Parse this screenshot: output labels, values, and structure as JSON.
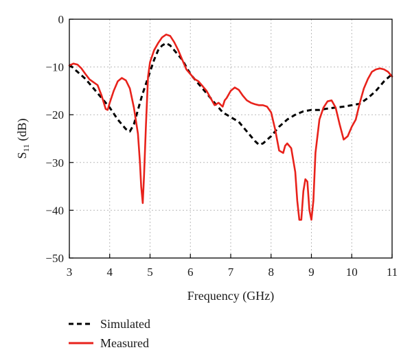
{
  "chart_data": {
    "type": "line",
    "xlabel": "Frequency (GHz)",
    "ylabel": {
      "main": "S",
      "sub": "11",
      "unit": " (dB)"
    },
    "xlim": [
      3,
      11
    ],
    "ylim": [
      -50,
      0
    ],
    "xticks": [
      3,
      4,
      5,
      6,
      7,
      8,
      9,
      10,
      11
    ],
    "yticks": [
      0,
      -10,
      -20,
      -30,
      -40,
      -50
    ],
    "ytick_labels": [
      "0",
      "−10",
      "−20",
      "−30",
      "−40",
      "−50"
    ],
    "grid": true,
    "legend_position": "bottom-left, below plot",
    "series": [
      {
        "name": "Simulated",
        "color": "#000000",
        "style": "dashed",
        "points": [
          [
            3.0,
            -9.5
          ],
          [
            3.2,
            -11.0
          ],
          [
            3.4,
            -12.5
          ],
          [
            3.6,
            -14.5
          ],
          [
            3.8,
            -16.5
          ],
          [
            4.0,
            -18.5
          ],
          [
            4.2,
            -21.0
          ],
          [
            4.4,
            -23.0
          ],
          [
            4.5,
            -23.5
          ],
          [
            4.6,
            -22.0
          ],
          [
            4.7,
            -19.0
          ],
          [
            4.8,
            -16.0
          ],
          [
            4.9,
            -13.5
          ],
          [
            5.0,
            -11.0
          ],
          [
            5.1,
            -8.5
          ],
          [
            5.2,
            -6.5
          ],
          [
            5.3,
            -5.5
          ],
          [
            5.4,
            -5.0
          ],
          [
            5.5,
            -5.5
          ],
          [
            5.6,
            -6.5
          ],
          [
            5.8,
            -8.5
          ],
          [
            6.0,
            -11.5
          ],
          [
            6.2,
            -13.5
          ],
          [
            6.4,
            -15.5
          ],
          [
            6.6,
            -17.5
          ],
          [
            6.8,
            -19.5
          ],
          [
            7.0,
            -20.5
          ],
          [
            7.2,
            -21.5
          ],
          [
            7.4,
            -23.5
          ],
          [
            7.6,
            -25.5
          ],
          [
            7.7,
            -26.3
          ],
          [
            7.8,
            -26.0
          ],
          [
            8.0,
            -24.5
          ],
          [
            8.2,
            -22.5
          ],
          [
            8.4,
            -21.0
          ],
          [
            8.6,
            -20.0
          ],
          [
            8.8,
            -19.3
          ],
          [
            9.0,
            -19.0
          ],
          [
            9.2,
            -19.0
          ],
          [
            9.4,
            -18.7
          ],
          [
            9.6,
            -18.5
          ],
          [
            9.8,
            -18.3
          ],
          [
            10.0,
            -18.0
          ],
          [
            10.2,
            -17.7
          ],
          [
            10.4,
            -16.5
          ],
          [
            10.6,
            -15.0
          ],
          [
            10.8,
            -13.0
          ],
          [
            11.0,
            -11.5
          ]
        ]
      },
      {
        "name": "Measured",
        "color": "#e8221b",
        "style": "solid",
        "points": [
          [
            3.0,
            -9.7
          ],
          [
            3.1,
            -9.3
          ],
          [
            3.2,
            -9.5
          ],
          [
            3.3,
            -10.3
          ],
          [
            3.4,
            -11.5
          ],
          [
            3.5,
            -12.6
          ],
          [
            3.6,
            -13.2
          ],
          [
            3.7,
            -13.8
          ],
          [
            3.8,
            -16.0
          ],
          [
            3.9,
            -18.8
          ],
          [
            3.95,
            -19.0
          ],
          [
            4.0,
            -17.5
          ],
          [
            4.1,
            -15.0
          ],
          [
            4.2,
            -13.0
          ],
          [
            4.3,
            -12.3
          ],
          [
            4.4,
            -12.8
          ],
          [
            4.5,
            -14.5
          ],
          [
            4.6,
            -18.5
          ],
          [
            4.7,
            -24.0
          ],
          [
            4.75,
            -30.0
          ],
          [
            4.78,
            -35.0
          ],
          [
            4.82,
            -38.5
          ],
          [
            4.85,
            -33.0
          ],
          [
            4.9,
            -22.0
          ],
          [
            4.95,
            -12.0
          ],
          [
            5.0,
            -9.0
          ],
          [
            5.1,
            -6.5
          ],
          [
            5.2,
            -5.0
          ],
          [
            5.3,
            -3.8
          ],
          [
            5.4,
            -3.2
          ],
          [
            5.5,
            -3.5
          ],
          [
            5.6,
            -4.8
          ],
          [
            5.7,
            -6.5
          ],
          [
            5.8,
            -8.5
          ],
          [
            5.9,
            -10.5
          ],
          [
            6.0,
            -11.5
          ],
          [
            6.1,
            -12.5
          ],
          [
            6.2,
            -13.0
          ],
          [
            6.3,
            -14.0
          ],
          [
            6.4,
            -15.0
          ],
          [
            6.5,
            -16.5
          ],
          [
            6.6,
            -18.0
          ],
          [
            6.7,
            -17.5
          ],
          [
            6.8,
            -18.3
          ],
          [
            6.85,
            -17.0
          ],
          [
            6.9,
            -16.5
          ],
          [
            7.0,
            -15.0
          ],
          [
            7.1,
            -14.3
          ],
          [
            7.2,
            -14.8
          ],
          [
            7.3,
            -16.0
          ],
          [
            7.4,
            -17.0
          ],
          [
            7.5,
            -17.5
          ],
          [
            7.6,
            -17.8
          ],
          [
            7.7,
            -18.0
          ],
          [
            7.8,
            -18.0
          ],
          [
            7.9,
            -18.3
          ],
          [
            8.0,
            -19.5
          ],
          [
            8.1,
            -23.0
          ],
          [
            8.2,
            -27.5
          ],
          [
            8.3,
            -28.0
          ],
          [
            8.35,
            -26.5
          ],
          [
            8.4,
            -26.0
          ],
          [
            8.5,
            -27.0
          ],
          [
            8.6,
            -32.0
          ],
          [
            8.65,
            -38.0
          ],
          [
            8.7,
            -42.0
          ],
          [
            8.75,
            -42.0
          ],
          [
            8.8,
            -36.0
          ],
          [
            8.85,
            -33.5
          ],
          [
            8.9,
            -34.0
          ],
          [
            8.95,
            -40.0
          ],
          [
            9.0,
            -42.0
          ],
          [
            9.05,
            -38.0
          ],
          [
            9.1,
            -28.0
          ],
          [
            9.2,
            -21.0
          ],
          [
            9.3,
            -18.5
          ],
          [
            9.4,
            -17.2
          ],
          [
            9.5,
            -17.0
          ],
          [
            9.6,
            -18.5
          ],
          [
            9.7,
            -22.0
          ],
          [
            9.8,
            -25.2
          ],
          [
            9.9,
            -24.5
          ],
          [
            10.0,
            -22.5
          ],
          [
            10.1,
            -21.0
          ],
          [
            10.2,
            -17.5
          ],
          [
            10.3,
            -14.5
          ],
          [
            10.4,
            -12.5
          ],
          [
            10.5,
            -11.0
          ],
          [
            10.6,
            -10.5
          ],
          [
            10.7,
            -10.3
          ],
          [
            10.8,
            -10.5
          ],
          [
            10.9,
            -11.0
          ],
          [
            11.0,
            -12.0
          ]
        ]
      }
    ]
  }
}
